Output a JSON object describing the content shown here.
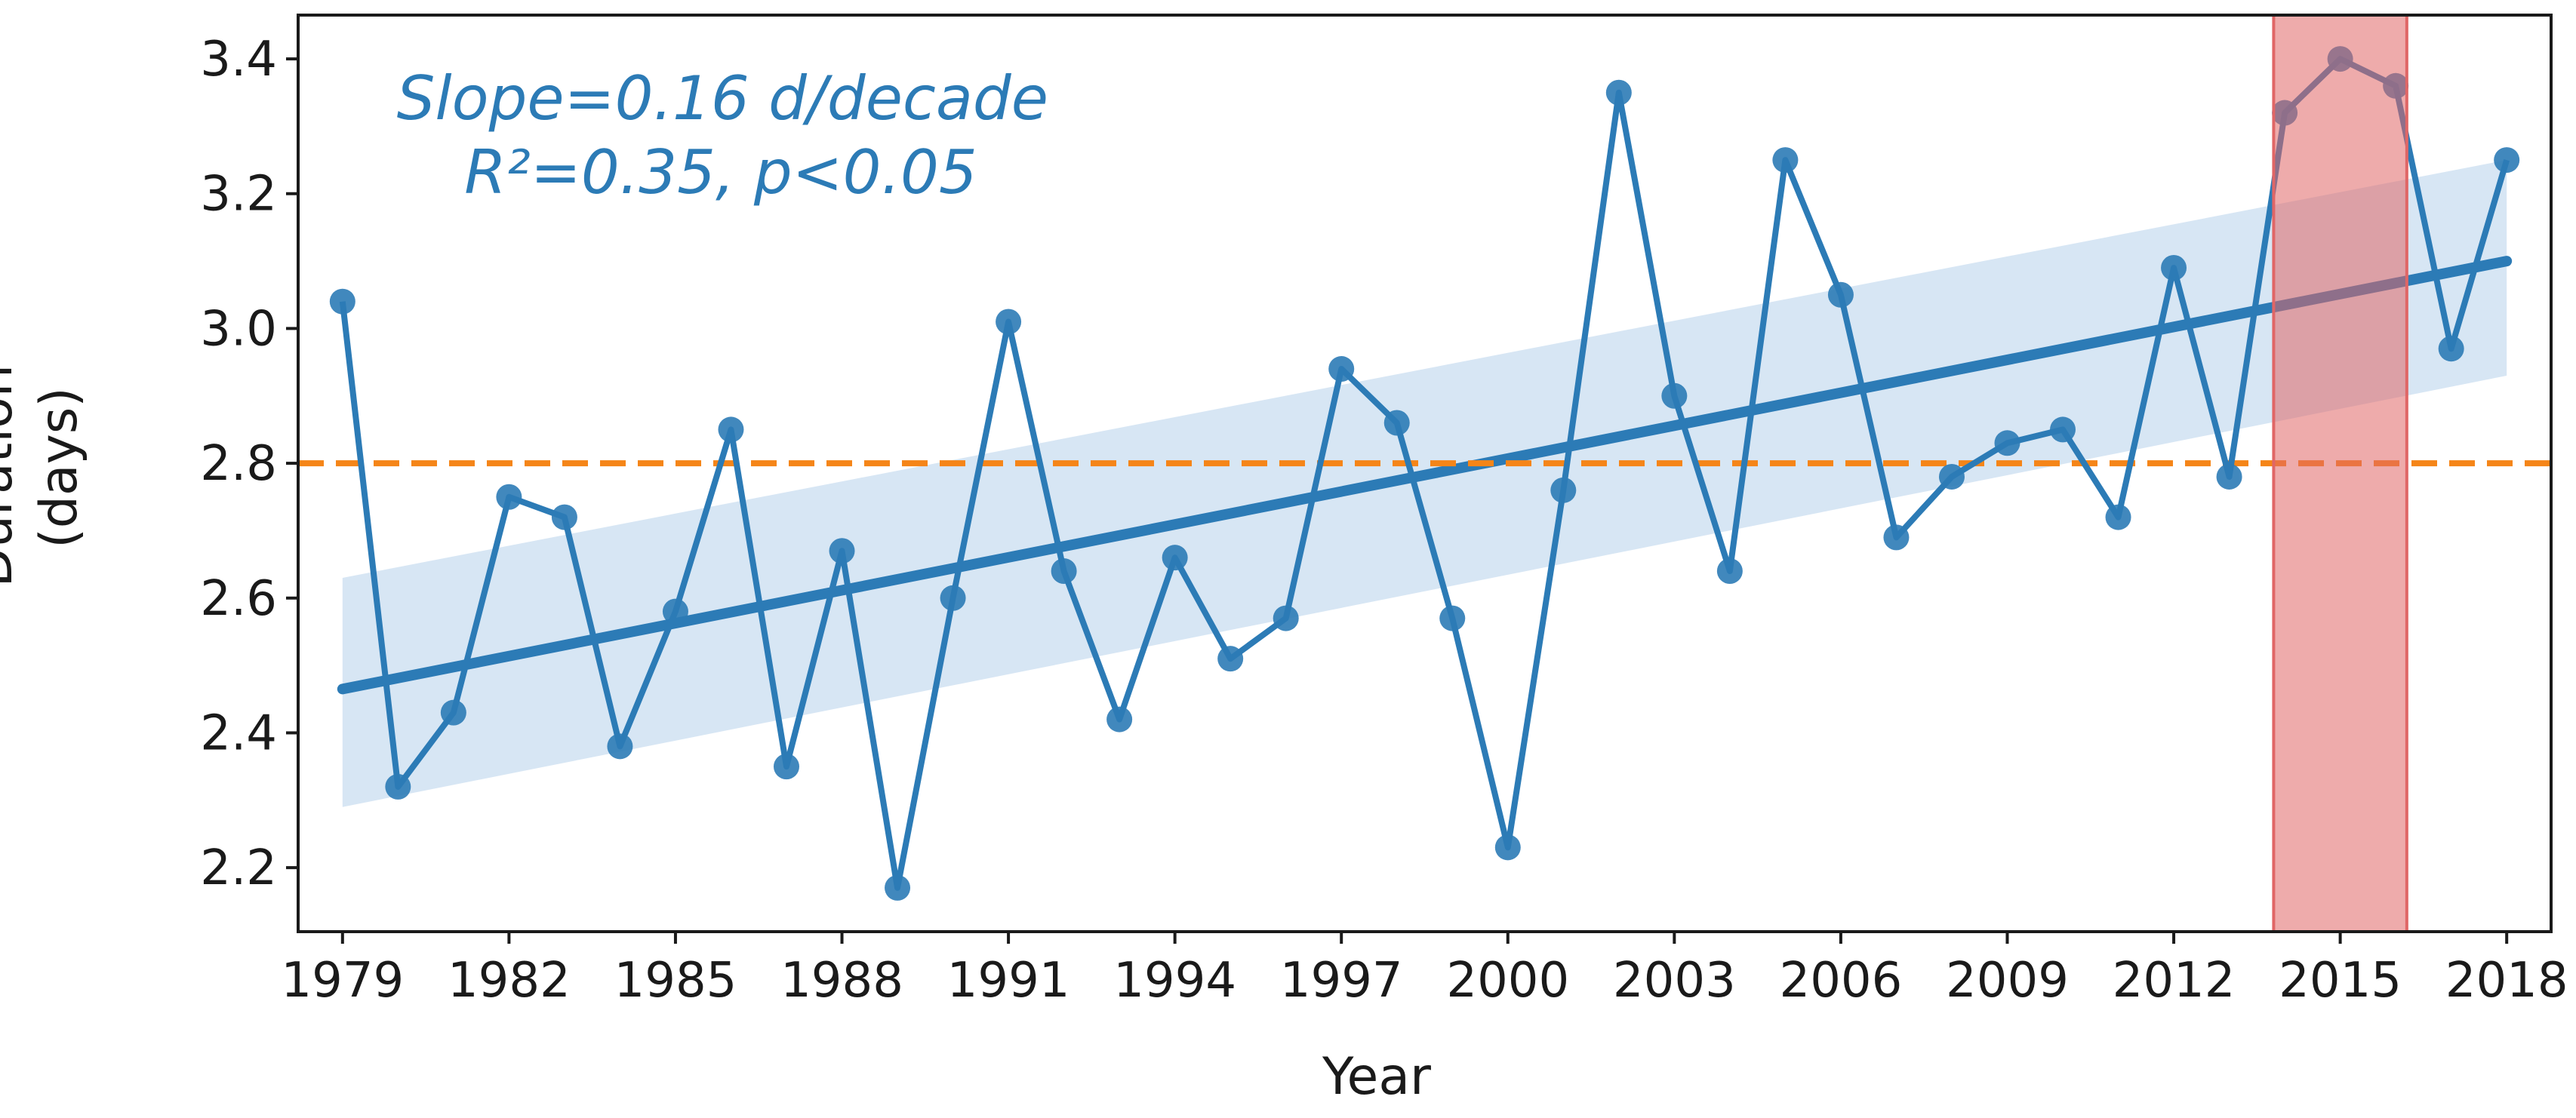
{
  "chart_data": {
    "type": "line",
    "xlabel": "Year",
    "ylabel_lines": [
      "Duration",
      "(days)"
    ],
    "xlim": [
      1978.2,
      2018.8
    ],
    "ylim": [
      2.105,
      3.465
    ],
    "x_ticks": [
      1979,
      1982,
      1985,
      1988,
      1991,
      1994,
      1997,
      2000,
      2003,
      2006,
      2009,
      2012,
      2015,
      2018
    ],
    "y_ticks": [
      2.2,
      2.4,
      2.6,
      2.8,
      3.0,
      3.2,
      3.4
    ],
    "y_tick_labels": [
      "2.2",
      "2.4",
      "2.6",
      "2.8",
      "3.0",
      "3.2",
      "3.4"
    ],
    "series": [
      {
        "name": "Duration",
        "x": [
          1979,
          1980,
          1981,
          1982,
          1983,
          1984,
          1985,
          1986,
          1987,
          1988,
          1989,
          1990,
          1991,
          1992,
          1993,
          1994,
          1995,
          1996,
          1997,
          1998,
          1999,
          2000,
          2001,
          2002,
          2003,
          2004,
          2005,
          2006,
          2007,
          2008,
          2009,
          2010,
          2011,
          2012,
          2013,
          2014,
          2015,
          2016,
          2017,
          2018
        ],
        "values": [
          3.04,
          2.32,
          2.43,
          2.75,
          2.72,
          2.38,
          2.58,
          2.85,
          2.35,
          2.67,
          2.17,
          2.6,
          3.01,
          2.64,
          2.42,
          2.66,
          2.51,
          2.57,
          2.94,
          2.86,
          2.57,
          2.23,
          2.76,
          3.35,
          2.9,
          2.64,
          3.25,
          3.05,
          2.69,
          2.78,
          2.83,
          2.85,
          2.72,
          3.09,
          2.78,
          3.32,
          3.4,
          3.36,
          2.97,
          3.25
        ]
      }
    ],
    "trend": {
      "x": [
        1979,
        2018
      ],
      "values": [
        2.465,
        3.1
      ],
      "ci_lower": [
        2.29,
        2.93
      ],
      "ci_upper": [
        2.63,
        3.25
      ]
    },
    "reference_line": 2.8,
    "highlight_span": [
      2013.8,
      2016.2
    ],
    "annotation_lines": [
      "Slope=0.16 d/decade",
      "R²=0.35, p<0.05"
    ],
    "colors": {
      "series": "#2c7bb6",
      "trend": "#2c7bb6",
      "ci_band": "#c6dbef",
      "reference": "#f58518",
      "highlight": "#e06666",
      "axis": "#1a1a1a"
    }
  }
}
